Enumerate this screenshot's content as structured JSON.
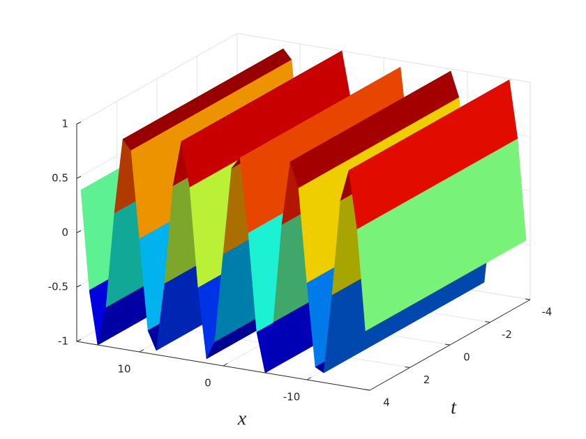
{
  "chart_data": {
    "type": "surface3d",
    "xlabel": "x",
    "ylabel": "t",
    "x": [
      17,
      16,
      15,
      14,
      13,
      12,
      11,
      10,
      9,
      8,
      7,
      6,
      5,
      4,
      3,
      2,
      1,
      0,
      -1,
      -2,
      -3,
      -4,
      -5,
      -6,
      -7,
      -8,
      -9,
      -10,
      -11,
      -12,
      -13,
      -14,
      -15,
      -16,
      -17
    ],
    "values": [
      0.4,
      -0.51,
      -1.0,
      -0.64,
      0.24,
      0.93,
      0.84,
      0.04,
      -0.79,
      -0.96,
      -0.33,
      0.58,
      1.0,
      0.59,
      -0.32,
      -0.96,
      -0.79,
      0.03,
      0.83,
      0.94,
      0.26,
      -0.64,
      -1.0,
      -0.52,
      0.39,
      0.98,
      0.75,
      -0.11,
      -0.87,
      -0.91,
      -0.18,
      0.7,
      0.99,
      0.46,
      -0.46
    ],
    "xlim": [
      -17.5,
      17.5
    ],
    "xticks": [
      -10,
      0,
      10
    ],
    "ylim": [
      -4,
      4
    ],
    "yticks": [
      -4,
      -2,
      0,
      2,
      4
    ],
    "zlim": [
      -1,
      1
    ],
    "zticks": [
      -1,
      -0.5,
      0,
      0.5,
      1
    ],
    "colormap": "jet",
    "grid": true
  }
}
